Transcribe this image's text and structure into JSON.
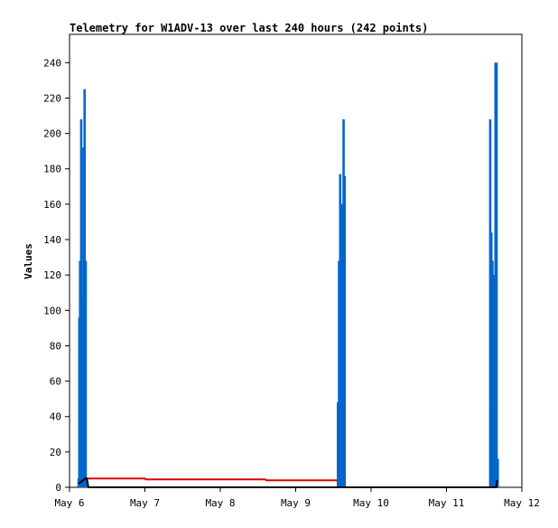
{
  "chart_data": {
    "type": "bar",
    "title": "Telemetry for W1ADV-13 over last 240 hours (242 points)",
    "xlabel": "",
    "ylabel": "Values",
    "x_unit": "day",
    "xlim": [
      0,
      6
    ],
    "ylim": [
      0,
      256
    ],
    "x_ticks": [
      {
        "value": 0,
        "label": "May 6"
      },
      {
        "value": 1,
        "label": "May 7"
      },
      {
        "value": 2,
        "label": "May 8"
      },
      {
        "value": 3,
        "label": "May 9"
      },
      {
        "value": 4,
        "label": "May 10"
      },
      {
        "value": 5,
        "label": "May 11"
      },
      {
        "value": 6,
        "label": "May 12"
      }
    ],
    "y_ticks": [
      0,
      20,
      40,
      60,
      80,
      100,
      120,
      140,
      160,
      180,
      200,
      220,
      240
    ],
    "grid": false,
    "colors": {
      "series_blue": "#0066cc",
      "series_red": "#dd0000",
      "series_black": "#000000"
    },
    "series": [
      {
        "color": "#0066cc",
        "style": "bars",
        "points": [
          [
            0.12,
            5
          ],
          [
            0.13,
            96
          ],
          [
            0.14,
            128
          ],
          [
            0.155,
            208
          ],
          [
            0.17,
            106
          ],
          [
            0.185,
            192
          ],
          [
            0.2,
            225
          ],
          [
            0.215,
            128
          ],
          [
            0.23,
            5
          ],
          [
            3.56,
            48
          ],
          [
            3.575,
            128
          ],
          [
            3.59,
            177
          ],
          [
            3.605,
            160
          ],
          [
            3.62,
            160
          ],
          [
            3.635,
            208
          ],
          [
            3.65,
            176
          ],
          [
            5.58,
            208
          ],
          [
            5.595,
            144
          ],
          [
            5.61,
            128
          ],
          [
            5.62,
            48
          ],
          [
            5.635,
            120
          ],
          [
            5.65,
            240
          ],
          [
            5.665,
            240
          ],
          [
            5.68,
            16
          ]
        ]
      },
      {
        "color": "#dd0000",
        "style": "line",
        "points": [
          [
            0.22,
            5
          ],
          [
            1.0,
            5
          ],
          [
            1.01,
            4.5
          ],
          [
            2.6,
            4.5
          ],
          [
            2.61,
            4
          ],
          [
            3.55,
            4
          ]
        ]
      },
      {
        "color": "#000000",
        "style": "line",
        "points": [
          [
            0.12,
            2
          ],
          [
            0.18,
            4
          ],
          [
            0.21,
            5
          ],
          [
            0.23,
            5
          ],
          [
            0.25,
            0
          ],
          [
            3.5,
            0
          ],
          [
            3.55,
            0
          ],
          [
            5.6,
            0
          ],
          [
            5.66,
            0
          ],
          [
            5.67,
            4
          ]
        ]
      }
    ]
  }
}
